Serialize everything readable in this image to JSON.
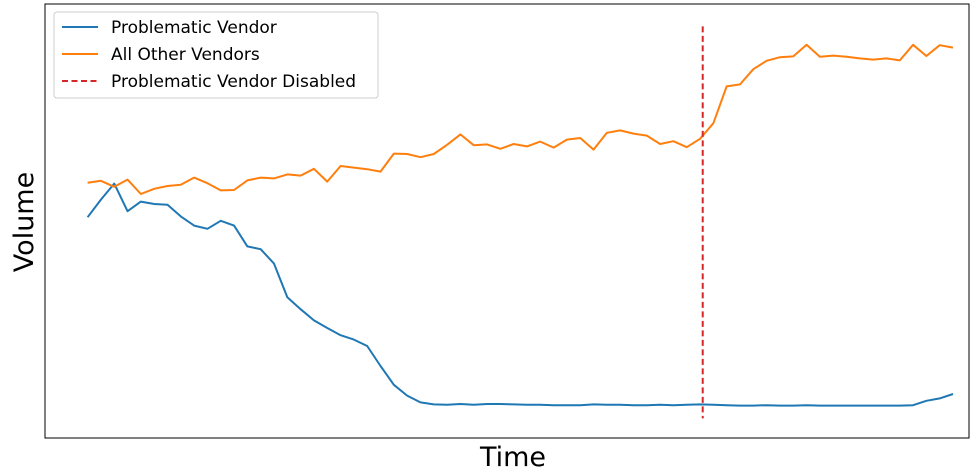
{
  "chart_data": {
    "type": "line",
    "xlabel": "Time",
    "ylabel": "Volume",
    "x_range": [
      -3.2,
      66.2
    ],
    "ylim": [
      0,
      108.5
    ],
    "grid": false,
    "legend_position": "top-left",
    "series": [
      {
        "name": "Problematic Vendor",
        "color": "#1f77b4",
        "values": [
          55.2,
          59.6,
          63.6,
          56.7,
          59.1,
          58.5,
          58.3,
          55.4,
          53.1,
          52.3,
          54.3,
          53.1,
          47.9,
          47.2,
          43.6,
          35.2,
          32.2,
          29.4,
          27.5,
          25.7,
          24.6,
          23.0,
          18.0,
          13.3,
          10.6,
          8.9,
          8.4,
          8.3,
          8.5,
          8.3,
          8.5,
          8.5,
          8.4,
          8.3,
          8.3,
          8.2,
          8.2,
          8.2,
          8.4,
          8.3,
          8.3,
          8.2,
          8.2,
          8.3,
          8.2,
          8.3,
          8.4,
          8.3,
          8.2,
          8.1,
          8.1,
          8.2,
          8.1,
          8.1,
          8.2,
          8.1,
          8.1,
          8.1,
          8.1,
          8.1,
          8.1,
          8.1,
          8.2,
          9.3,
          9.9,
          11.0
        ]
      },
      {
        "name": "All Other Vendors",
        "color": "#ff7f0e",
        "values": [
          63.8,
          64.3,
          62.8,
          64.6,
          61.0,
          62.3,
          63.0,
          63.3,
          65.1,
          63.7,
          61.9,
          62.0,
          64.4,
          65.1,
          64.9,
          65.9,
          65.6,
          67.3,
          64.1,
          68.0,
          67.6,
          67.2,
          66.6,
          71.1,
          71.0,
          70.2,
          71.0,
          73.3,
          75.9,
          73.2,
          73.4,
          72.3,
          73.5,
          72.9,
          74.1,
          72.6,
          74.6,
          75.0,
          72.1,
          76.3,
          76.9,
          76.1,
          75.6,
          73.5,
          74.2,
          72.7,
          74.8,
          78.7,
          87.9,
          88.4,
          92.2,
          94.3,
          95.2,
          95.4,
          98.3,
          95.3,
          95.6,
          95.3,
          94.9,
          94.6,
          94.9,
          94.4,
          98.3,
          95.5,
          98.2,
          97.6
        ]
      }
    ],
    "vertical_line": {
      "name": "Problematic Vendor Disabled",
      "color": "#d62728",
      "x": 46.2,
      "y_range": [
        4.9,
        102.9
      ]
    }
  }
}
